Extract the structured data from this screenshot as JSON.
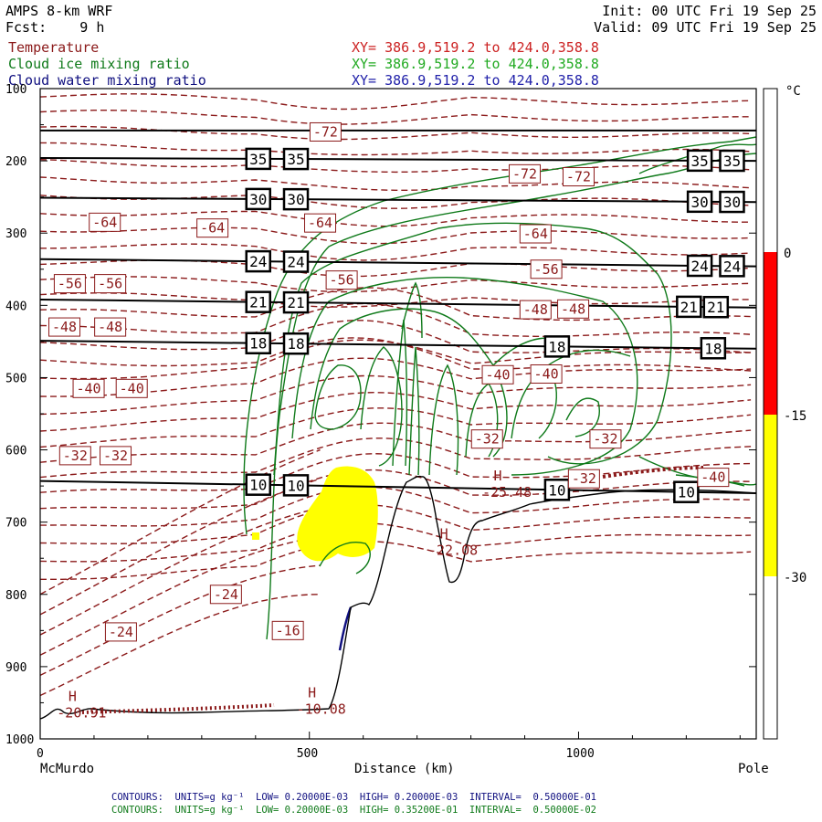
{
  "header": {
    "model": "AMPS 8-km WRF",
    "fcst": "Fcst:    9 h",
    "init": "Init: 00 UTC Fri 19 Sep 25",
    "valid": "Valid: 09 UTC Fri 19 Sep 25",
    "fields": [
      {
        "name": "Temperature",
        "xy": "XY= 386.9,519.2 to 424.0,358.8",
        "color": "#8b1a1a"
      },
      {
        "name": "Cloud ice mixing ratio",
        "xy": "XY= 386.9,519.2 to 424.0,358.8",
        "color": "#0f7a1a"
      },
      {
        "name": "Cloud water mixing ratio",
        "xy": "XY= 386.9,519.2 to 424.0,358.8",
        "color": "#101080"
      }
    ]
  },
  "footer": {
    "line1": "CONTOURS:  UNITS=g kg⁻¹  LOW= 0.20000E-03  HIGH= 0.20000E-03  INTERVAL=  0.50000E-01",
    "line2": "CONTOURS:  UNITS=g kg⁻¹  LOW= 0.20000E-03  HIGH= 0.35200E-01  INTERVAL=  0.50000E-02",
    "line1_color": "#101080",
    "line2_color": "#0f7a1a"
  },
  "chart_data": {
    "type": "cross-section",
    "xlabel": "Distance (km)",
    "x_start_label": "McMurdo",
    "x_end_label": "Pole",
    "xlim": [
      0,
      1330
    ],
    "x_ticks": [
      0,
      500,
      1000
    ],
    "ylim": [
      1000,
      100
    ],
    "y_ticks": [
      100,
      200,
      300,
      400,
      500,
      600,
      700,
      800,
      900,
      1000
    ],
    "colorbar": {
      "unit": "°C",
      "labels": [
        "0",
        "-15",
        "-30"
      ],
      "bands": [
        {
          "from": 0,
          "to": -15,
          "color": "#ff0000"
        },
        {
          "from": -15,
          "to": -30,
          "color": "#ffff00"
        }
      ]
    },
    "theta_lines": [
      {
        "label": "35",
        "p_left": 196,
        "p_right": 200
      },
      {
        "label": "30",
        "p_left": 251,
        "p_right": 257
      },
      {
        "label": "24",
        "p_left": 336,
        "p_right": 346
      },
      {
        "label": "21",
        "p_left": 392,
        "p_right": 403
      },
      {
        "label": "18",
        "p_left": 449,
        "p_right": 460
      },
      {
        "label": "10",
        "p_left": 643,
        "p_right": 660
      },
      {
        "label": "",
        "p_left": 158,
        "p_right": 158
      }
    ],
    "theta_label_positions": [
      {
        "label": "35",
        "x": [
          405,
          475,
          1225,
          1285
        ]
      },
      {
        "label": "30",
        "x": [
          405,
          475,
          1225,
          1285
        ]
      },
      {
        "label": "24",
        "x": [
          405,
          475,
          1225,
          1285
        ]
      },
      {
        "label": "21",
        "x": [
          405,
          475,
          1205,
          1255
        ]
      },
      {
        "label": "18",
        "x": [
          405,
          475,
          960,
          1250
        ]
      },
      {
        "label": "10",
        "x": [
          405,
          475,
          960,
          1200
        ]
      }
    ],
    "temperature_labels": [
      {
        "value": "-72",
        "x": 530,
        "p": 160
      },
      {
        "value": "-72",
        "x": 900,
        "p": 218
      },
      {
        "value": "-72",
        "x": 1000,
        "p": 222
      },
      {
        "value": "-64",
        "x": 120,
        "p": 285
      },
      {
        "value": "-64",
        "x": 320,
        "p": 293
      },
      {
        "value": "-64",
        "x": 520,
        "p": 286
      },
      {
        "value": "-64",
        "x": 920,
        "p": 301
      },
      {
        "value": "-56",
        "x": 55,
        "p": 370
      },
      {
        "value": "-56",
        "x": 130,
        "p": 370
      },
      {
        "value": "-56",
        "x": 560,
        "p": 365
      },
      {
        "value": "-56",
        "x": 940,
        "p": 350
      },
      {
        "value": "-48",
        "x": 45,
        "p": 430
      },
      {
        "value": "-48",
        "x": 130,
        "p": 430
      },
      {
        "value": "-48",
        "x": 920,
        "p": 406
      },
      {
        "value": "-48",
        "x": 990,
        "p": 405
      },
      {
        "value": "-40",
        "x": 90,
        "p": 515
      },
      {
        "value": "-40",
        "x": 170,
        "p": 515
      },
      {
        "value": "-40",
        "x": 850,
        "p": 496
      },
      {
        "value": "-40",
        "x": 940,
        "p": 495
      },
      {
        "value": "-32",
        "x": 65,
        "p": 608
      },
      {
        "value": "-32",
        "x": 140,
        "p": 608
      },
      {
        "value": "-32",
        "x": 830,
        "p": 585
      },
      {
        "value": "-32",
        "x": 1050,
        "p": 585
      },
      {
        "value": "-32",
        "x": 1010,
        "p": 640
      },
      {
        "value": "-24",
        "x": 345,
        "p": 800
      },
      {
        "value": "-24",
        "x": 150,
        "p": 852
      },
      {
        "value": "-16",
        "x": 460,
        "p": 850
      },
      {
        "value": "-40",
        "x": 1250,
        "p": 638
      }
    ],
    "highs": [
      {
        "symbol": "H",
        "value": "-20.91",
        "x": 60,
        "p": 955
      },
      {
        "symbol": "H",
        "value": "-10.08",
        "x": 505,
        "p": 950
      },
      {
        "symbol": "H",
        "value": "-22.08",
        "x": 750,
        "p": 730
      },
      {
        "symbol": "H",
        "value": "-25.48",
        "x": 850,
        "p": 650
      }
    ]
  }
}
